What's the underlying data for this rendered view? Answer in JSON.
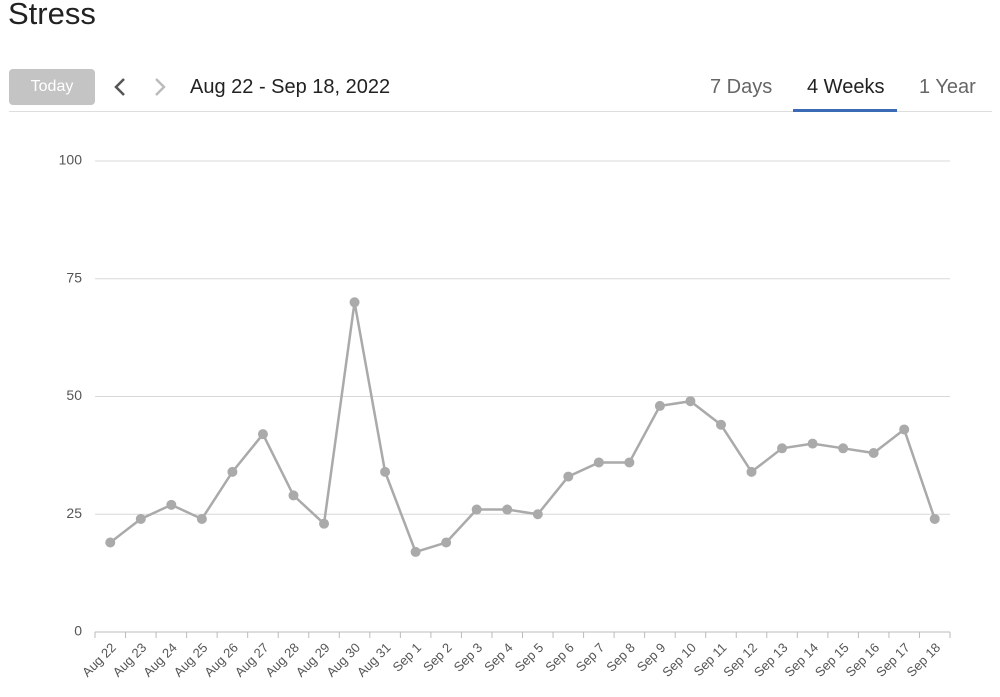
{
  "page": {
    "title": "Stress",
    "today_button": "Today",
    "date_range": "Aug 22 - Sep 18, 2022",
    "tabs": [
      "7 Days",
      "4 Weeks",
      "1 Year"
    ]
  },
  "chart_data": {
    "type": "line",
    "categories": [
      "Aug 22",
      "Aug 23",
      "Aug 24",
      "Aug 25",
      "Aug 26",
      "Aug 27",
      "Aug 28",
      "Aug 29",
      "Aug 30",
      "Aug 31",
      "Sep 1",
      "Sep 2",
      "Sep 3",
      "Sep 4",
      "Sep 5",
      "Sep 6",
      "Sep 7",
      "Sep 8",
      "Sep 9",
      "Sep 10",
      "Sep 11",
      "Sep 12",
      "Sep 13",
      "Sep 14",
      "Sep 15",
      "Sep 16",
      "Sep 17",
      "Sep 18"
    ],
    "values": [
      19,
      24,
      27,
      24,
      34,
      42,
      29,
      23,
      70,
      34,
      17,
      19,
      26,
      26,
      25,
      33,
      36,
      36,
      48,
      49,
      44,
      34,
      39,
      40,
      39,
      38,
      43,
      24
    ],
    "color": "#aaaaaa",
    "ylim": [
      0,
      100
    ],
    "yticks": [
      0,
      25,
      50,
      75,
      100
    ],
    "grid": true
  }
}
